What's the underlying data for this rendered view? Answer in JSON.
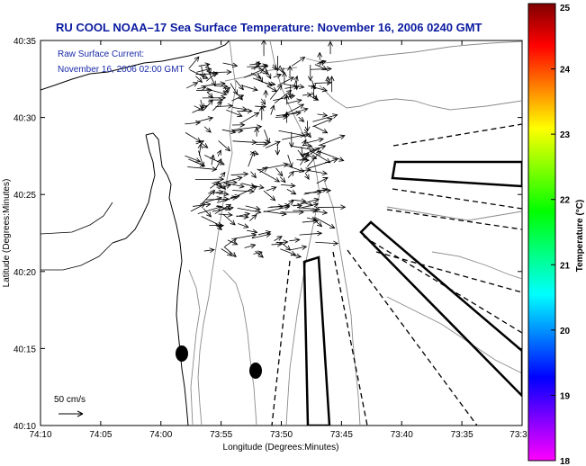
{
  "title": "RU COOL  NOAA–17  Sea Surface Temperature:  November 16, 2006 0240 GMT",
  "annotation": {
    "line1": "Raw Surface Current:",
    "line2": "November 16, 2006 02:00 GMT"
  },
  "scale_label": "50 cm/s",
  "chart_data": {
    "type": "map",
    "xlabel": "Longitude (Degrees:Minutes)",
    "ylabel": "Latitude (Degrees:Minutes)",
    "x_ticks": [
      "74:10",
      "74:05",
      "74:00",
      "73:55",
      "73:50",
      "73:45",
      "73:40",
      "73:35",
      "73:3"
    ],
    "y_ticks": [
      "40:35",
      "40:30",
      "40:25",
      "40:20",
      "40:15",
      "40:10"
    ],
    "colorbar": {
      "label": "Temperature (°C)",
      "min": 18,
      "max": 25,
      "ticks": [
        "25",
        "24",
        "23",
        "22",
        "21",
        "20",
        "19",
        "18"
      ],
      "colors": [
        "#ff00ff",
        "#8000ff",
        "#0000ff",
        "#0080ff",
        "#00ffff",
        "#00ff80",
        "#00ff00",
        "#80ff00",
        "#ffff00",
        "#ff8000",
        "#ff0000",
        "#800000"
      ]
    }
  }
}
